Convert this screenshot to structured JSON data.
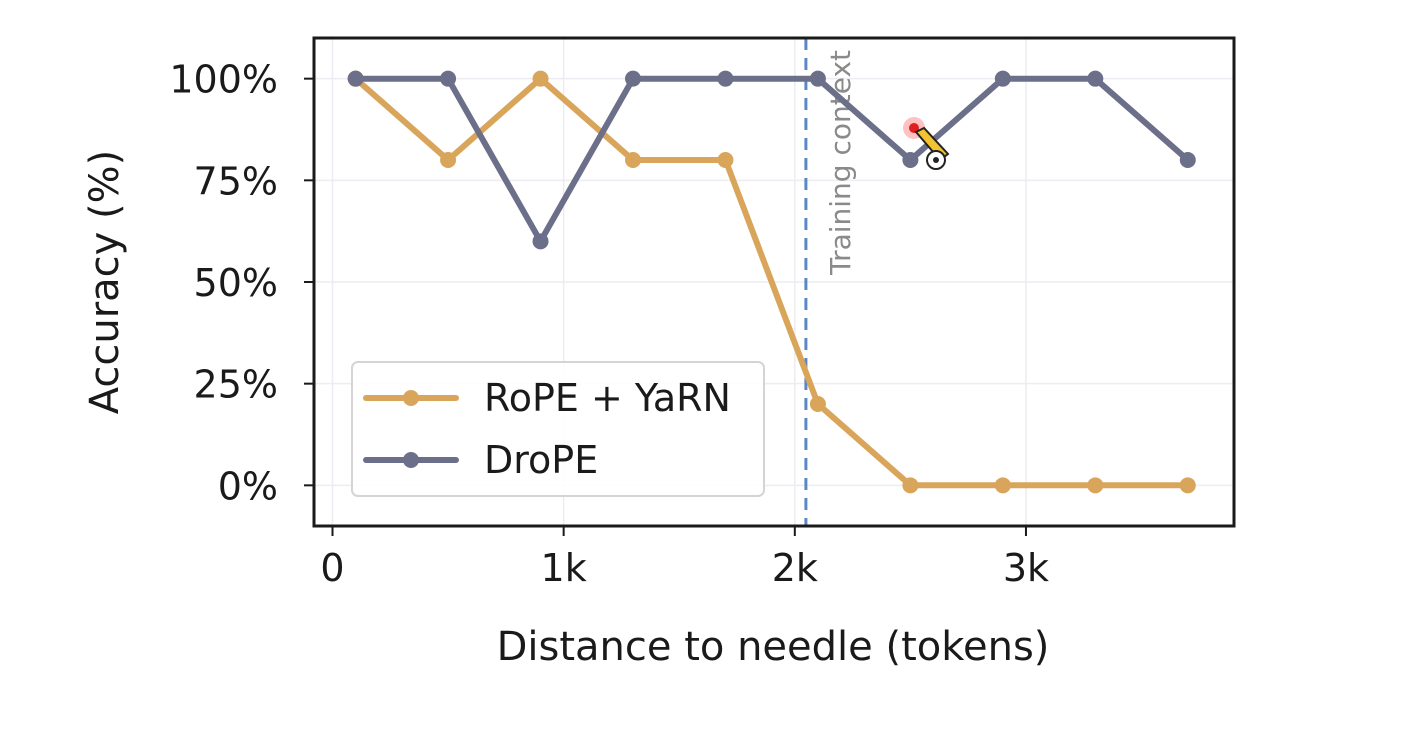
{
  "chart_data": {
    "type": "line",
    "title": "",
    "xlabel": "Distance to needle (tokens)",
    "ylabel": "Accuracy (%)",
    "xlim": [
      -80,
      3900
    ],
    "ylim": [
      -10,
      110
    ],
    "grid": true,
    "x_ticks": [
      {
        "value": 0,
        "label": "0"
      },
      {
        "value": 1000,
        "label": "1k"
      },
      {
        "value": 2000,
        "label": "2k"
      },
      {
        "value": 3000,
        "label": "3k"
      }
    ],
    "y_ticks": [
      {
        "value": 0,
        "label": "0%"
      },
      {
        "value": 25,
        "label": "25%"
      },
      {
        "value": 50,
        "label": "50%"
      },
      {
        "value": 75,
        "label": "75%"
      },
      {
        "value": 100,
        "label": "100%"
      }
    ],
    "x": [
      100,
      500,
      900,
      1300,
      1700,
      2100,
      2500,
      2900,
      3300,
      3700
    ],
    "series": [
      {
        "name": "RoPE + YaRN",
        "color": "#d9a55b",
        "values": [
          100,
          80,
          100,
          80,
          80,
          20,
          0,
          0,
          0,
          0
        ]
      },
      {
        "name": "DroPE",
        "color": "#6b6f89",
        "values": [
          100,
          100,
          60,
          100,
          100,
          100,
          80,
          100,
          100,
          80
        ]
      }
    ],
    "annotations": [
      {
        "type": "vline",
        "x": 2048,
        "label": "Training context",
        "color": "#5b88c4",
        "style": "dashed"
      }
    ],
    "legend_position": "lower-left"
  }
}
